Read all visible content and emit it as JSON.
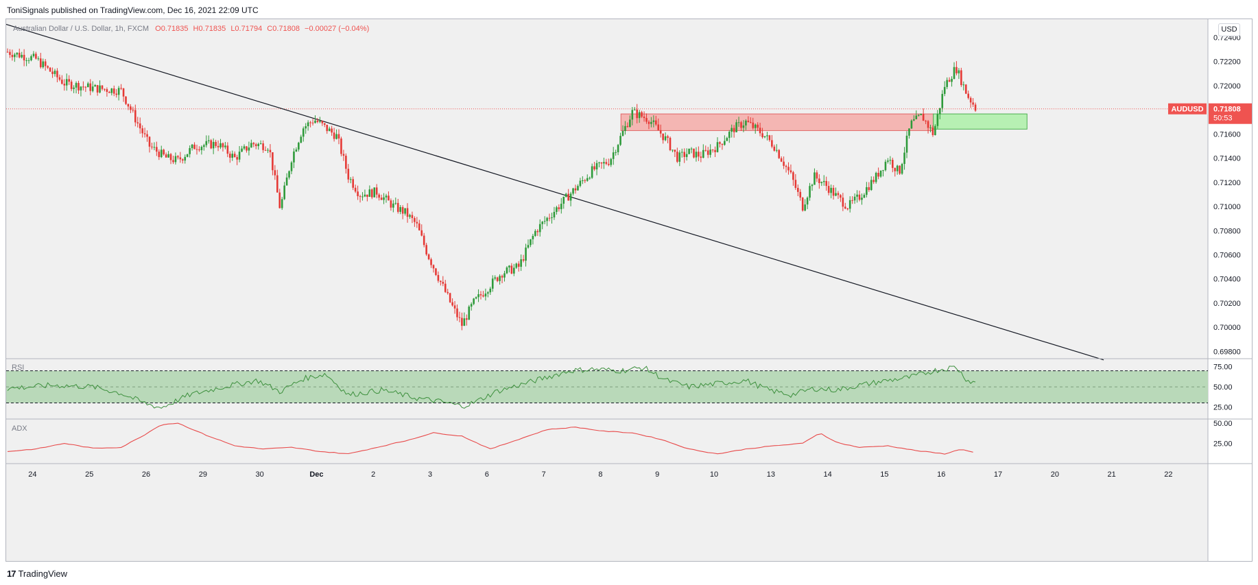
{
  "header": {
    "published": "ToniSignals published on TradingView.com, Dec 16, 2021 22:09 UTC"
  },
  "legend": {
    "symbol": "Australian Dollar / U.S. Dollar, 1h, FXCM",
    "open": "O0.71835",
    "high": "H0.71835",
    "low": "L0.71794",
    "close": "C0.71808",
    "change": "−0.00027 (−0.04%)"
  },
  "currency": "USD",
  "price_tag": {
    "symbol": "AUDUSD",
    "price": "0.71808",
    "countdown": "50:53"
  },
  "panes": {
    "rsi_label": "RSI",
    "adx_label": "ADX"
  },
  "footer": {
    "brand": "TradingView",
    "logo_glyph": "17"
  },
  "colors": {
    "up": "#26a69a",
    "down": "#ef5350",
    "candle_up": "#2e9a3a",
    "candle_down": "#e53935",
    "resistance_zone": "#f4b6b3",
    "support_zone": "#b7f0b3",
    "rsi_band": "#b9d9b9",
    "rsi_line": "#3c8f3c",
    "adx_line": "#e84a4a"
  },
  "chart_data": {
    "type": "candlestick",
    "instrument": "AUDUSD",
    "timeframe": "1h",
    "x_ticks": [
      "24",
      "25",
      "26",
      "29",
      "30",
      "Dec",
      "2",
      "3",
      "6",
      "7",
      "8",
      "9",
      "10",
      "13",
      "14",
      "15",
      "16",
      "17",
      "20",
      "21",
      "22"
    ],
    "y_ticks": [
      "0.72400",
      "0.72200",
      "0.72000",
      "0.71600",
      "0.71400",
      "0.71200",
      "0.71000",
      "0.70800",
      "0.70600",
      "0.70400",
      "0.70200",
      "0.70000",
      "0.69800"
    ],
    "ylim": [
      0.6974,
      0.7255
    ],
    "last_price": 0.71808,
    "price_path": [
      [
        0.0,
        0.7228
      ],
      [
        0.5,
        0.7222
      ],
      [
        1.0,
        0.7202
      ],
      [
        1.5,
        0.7198
      ],
      [
        2.0,
        0.7196
      ],
      [
        2.3,
        0.7168
      ],
      [
        2.5,
        0.715
      ],
      [
        2.8,
        0.714
      ],
      [
        3.0,
        0.7138
      ],
      [
        3.3,
        0.715
      ],
      [
        3.7,
        0.7152
      ],
      [
        4.0,
        0.714
      ],
      [
        4.3,
        0.7152
      ],
      [
        4.6,
        0.715
      ],
      [
        4.8,
        0.7098
      ],
      [
        5.0,
        0.714
      ],
      [
        5.2,
        0.7165
      ],
      [
        5.4,
        0.7172
      ],
      [
        5.6,
        0.7165
      ],
      [
        5.8,
        0.7158
      ],
      [
        6.0,
        0.7125
      ],
      [
        6.2,
        0.711
      ],
      [
        6.5,
        0.7112
      ],
      [
        6.8,
        0.71
      ],
      [
        7.0,
        0.7095
      ],
      [
        7.2,
        0.7085
      ],
      [
        7.4,
        0.706
      ],
      [
        7.6,
        0.704
      ],
      [
        7.8,
        0.702
      ],
      [
        8.0,
        0.7002
      ],
      [
        8.2,
        0.702
      ],
      [
        8.4,
        0.703
      ],
      [
        8.7,
        0.7045
      ],
      [
        9.0,
        0.705
      ],
      [
        9.3,
        0.708
      ],
      [
        9.6,
        0.7095
      ],
      [
        10.0,
        0.7115
      ],
      [
        10.3,
        0.713
      ],
      [
        10.6,
        0.7138
      ],
      [
        11.0,
        0.7178
      ],
      [
        11.3,
        0.7172
      ],
      [
        11.6,
        0.7155
      ],
      [
        11.8,
        0.714
      ],
      [
        12.0,
        0.7145
      ],
      [
        12.2,
        0.7142
      ],
      [
        12.5,
        0.715
      ],
      [
        12.8,
        0.7165
      ],
      [
        13.0,
        0.717
      ],
      [
        13.3,
        0.716
      ],
      [
        13.5,
        0.715
      ],
      [
        13.8,
        0.7125
      ],
      [
        14.0,
        0.71
      ],
      [
        14.2,
        0.7125
      ],
      [
        14.4,
        0.7118
      ],
      [
        14.6,
        0.7108
      ],
      [
        14.8,
        0.71
      ],
      [
        15.0,
        0.7108
      ],
      [
        15.3,
        0.7125
      ],
      [
        15.5,
        0.714
      ],
      [
        15.7,
        0.7128
      ],
      [
        15.9,
        0.7168
      ],
      [
        16.1,
        0.7175
      ],
      [
        16.3,
        0.716
      ],
      [
        16.5,
        0.72
      ],
      [
        16.7,
        0.7215
      ],
      [
        16.9,
        0.7192
      ],
      [
        17.0,
        0.7185
      ],
      [
        17.05,
        0.71808
      ]
    ],
    "trendline": {
      "from": [
        -0.6,
        0.7259
      ],
      "to": [
        19.3,
        0.6973
      ]
    },
    "zones": [
      {
        "kind": "resistance",
        "x": [
          10.8,
          16.3
        ],
        "y": [
          0.71628,
          0.71766
        ],
        "color": "#f4b6b3"
      },
      {
        "kind": "support",
        "x": [
          16.3,
          17.95
        ],
        "y": [
          0.7164,
          0.71766
        ],
        "color": "#b7f0b3"
      }
    ],
    "indicators": {
      "rsi": {
        "name": "RSI",
        "y_ticks": [
          "75.00",
          "50.00",
          "25.00"
        ],
        "upper": 70,
        "middle": 50,
        "lower": 30,
        "ylim": [
          10,
          85
        ],
        "path": [
          [
            0.0,
            48
          ],
          [
            0.8,
            52
          ],
          [
            1.5,
            50
          ],
          [
            2.0,
            42
          ],
          [
            2.4,
            30
          ],
          [
            2.7,
            24
          ],
          [
            3.2,
            40
          ],
          [
            3.8,
            50
          ],
          [
            4.4,
            58
          ],
          [
            4.8,
            44
          ],
          [
            5.2,
            60
          ],
          [
            5.6,
            66
          ],
          [
            6.0,
            40
          ],
          [
            6.6,
            46
          ],
          [
            7.2,
            36
          ],
          [
            7.6,
            32
          ],
          [
            8.0,
            26
          ],
          [
            8.2,
            30
          ],
          [
            8.6,
            44
          ],
          [
            9.0,
            52
          ],
          [
            9.5,
            62
          ],
          [
            9.9,
            70
          ],
          [
            10.3,
            72
          ],
          [
            10.8,
            70
          ],
          [
            11.2,
            74
          ],
          [
            11.6,
            58
          ],
          [
            12.0,
            50
          ],
          [
            12.5,
            54
          ],
          [
            13.0,
            58
          ],
          [
            13.4,
            46
          ],
          [
            13.8,
            40
          ],
          [
            14.2,
            48
          ],
          [
            14.6,
            46
          ],
          [
            15.0,
            52
          ],
          [
            15.5,
            58
          ],
          [
            15.9,
            62
          ],
          [
            16.3,
            70
          ],
          [
            16.7,
            75
          ],
          [
            16.9,
            58
          ],
          [
            17.05,
            55
          ]
        ]
      },
      "adx": {
        "name": "ADX",
        "y_ticks": [
          "50.00",
          "25.00"
        ],
        "ylim": [
          0,
          55
        ],
        "path": [
          [
            0.0,
            15
          ],
          [
            0.5,
            18
          ],
          [
            1.0,
            25
          ],
          [
            1.5,
            19
          ],
          [
            2.0,
            20
          ],
          [
            2.4,
            35
          ],
          [
            2.7,
            48
          ],
          [
            3.0,
            50
          ],
          [
            3.5,
            35
          ],
          [
            4.0,
            22
          ],
          [
            4.5,
            18
          ],
          [
            5.0,
            20
          ],
          [
            5.5,
            15
          ],
          [
            6.0,
            12
          ],
          [
            6.5,
            20
          ],
          [
            7.0,
            28
          ],
          [
            7.5,
            38
          ],
          [
            8.0,
            34
          ],
          [
            8.5,
            18
          ],
          [
            9.0,
            30
          ],
          [
            9.5,
            42
          ],
          [
            10.0,
            45
          ],
          [
            10.5,
            40
          ],
          [
            11.0,
            38
          ],
          [
            11.5,
            30
          ],
          [
            12.0,
            18
          ],
          [
            12.5,
            12
          ],
          [
            13.0,
            18
          ],
          [
            13.5,
            22
          ],
          [
            14.0,
            25
          ],
          [
            14.3,
            38
          ],
          [
            14.6,
            26
          ],
          [
            15.0,
            20
          ],
          [
            15.5,
            22
          ],
          [
            16.0,
            16
          ],
          [
            16.5,
            12
          ],
          [
            16.8,
            18
          ],
          [
            17.05,
            13
          ]
        ]
      }
    }
  }
}
